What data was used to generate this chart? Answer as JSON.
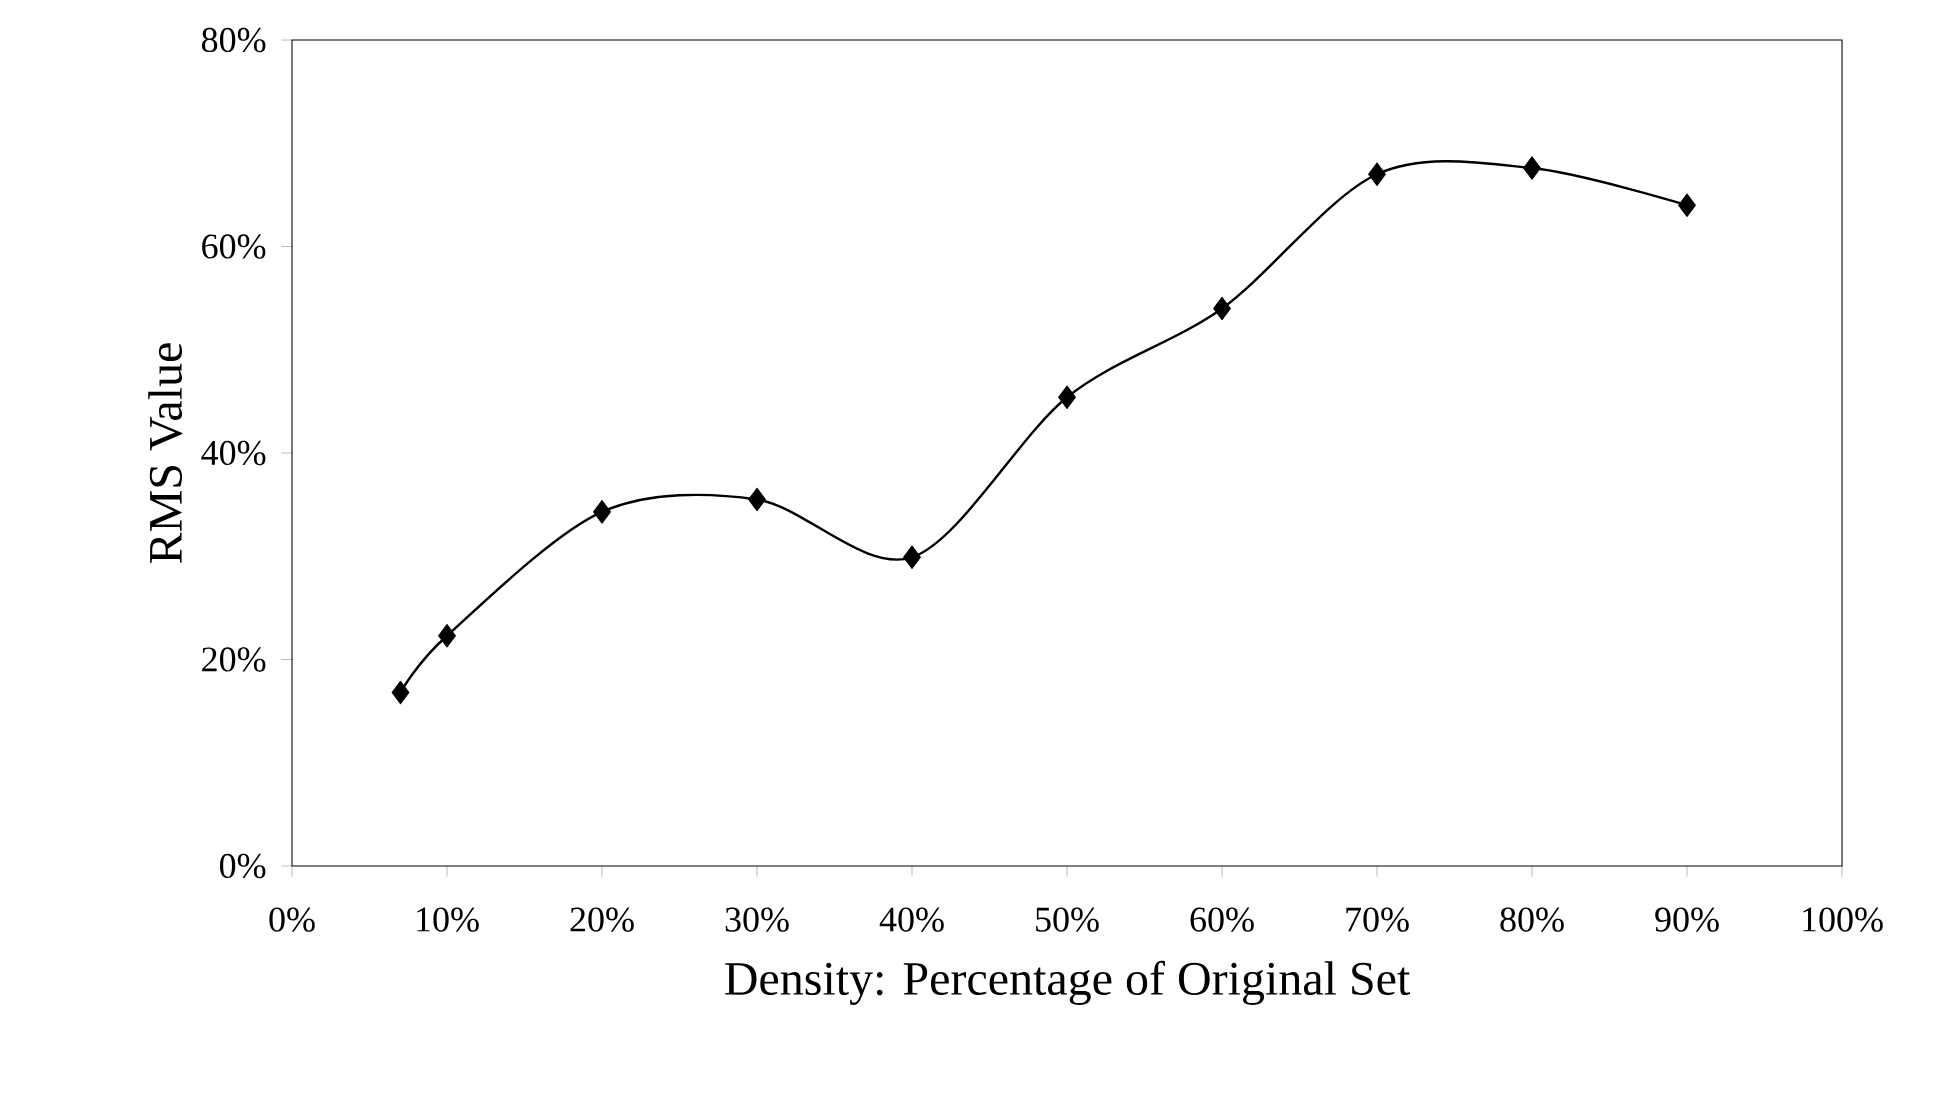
{
  "chart_data": {
    "type": "line",
    "xlabel": "Density: Percentage of Original Set",
    "ylabel": "RMS Value",
    "x": [
      7,
      10,
      20,
      30,
      40,
      50,
      60,
      70,
      80,
      90
    ],
    "series": [
      {
        "color": "#000000",
        "values": [
          16.8,
          22.3,
          34.3,
          35.5,
          29.9,
          45.4,
          54.0,
          67.0,
          67.6,
          64.0
        ]
      }
    ],
    "xlim": [
      0,
      100
    ],
    "xticks": [
      {
        "value": 0,
        "label": "0%"
      },
      {
        "value": 10,
        "label": "10%"
      },
      {
        "value": 20,
        "label": "20%"
      },
      {
        "value": 30,
        "label": "30%"
      },
      {
        "value": 40,
        "label": "40%"
      },
      {
        "value": 50,
        "label": "50%"
      },
      {
        "value": 60,
        "label": "60%"
      },
      {
        "value": 70,
        "label": "70%"
      },
      {
        "value": 80,
        "label": "80%"
      },
      {
        "value": 90,
        "label": "90%"
      },
      {
        "value": 100,
        "label": "100%"
      }
    ],
    "ylim": [
      0,
      80
    ],
    "yticks": [
      {
        "value": 0,
        "label": "0%"
      },
      {
        "value": 20,
        "label": "20%"
      },
      {
        "value": 40,
        "label": "40%"
      },
      {
        "value": 60,
        "label": "60%"
      },
      {
        "value": 80,
        "label": "80%"
      }
    ],
    "grid": false,
    "marker": "diamond",
    "line_style": "solid"
  }
}
